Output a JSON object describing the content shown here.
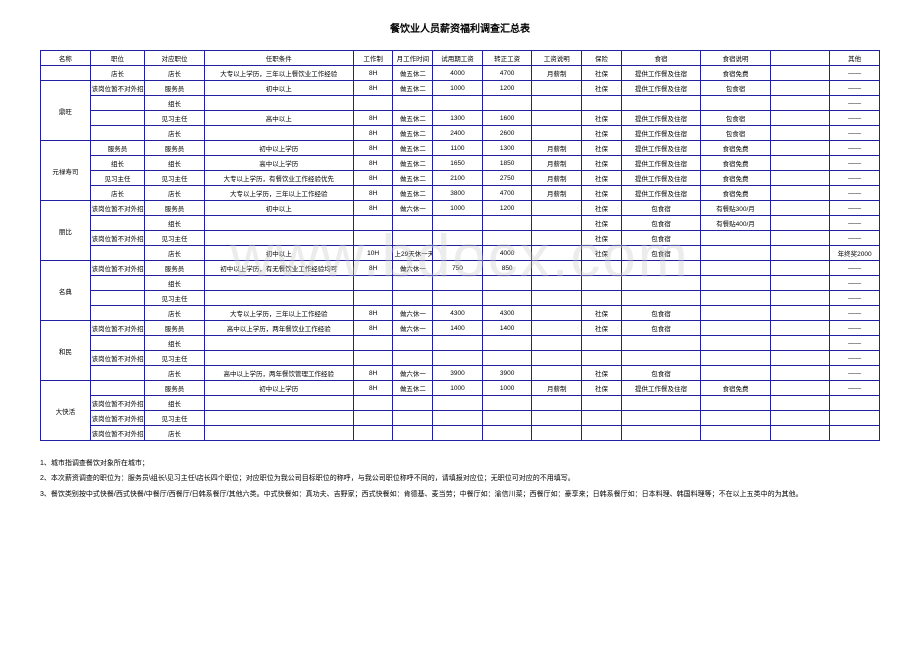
{
  "title": "餐饮业人员薪资福利调查汇总表",
  "watermark": "www.bdocx.com",
  "headers": {
    "name": "名称",
    "position": "职位",
    "corrPos": "对应职位",
    "req": "任职条件",
    "workSys": "工作制",
    "monthTime": "月工作时间",
    "trialWage": "试用期工资",
    "fullWage": "转正工资",
    "wageDesc": "工资说明",
    "insurance": "保险",
    "board": "食宿",
    "boardDesc": "食宿说明",
    "other": "其他"
  },
  "groups": [
    {
      "name": "",
      "rows": [
        {
          "pos": "店长",
          "cpos": "店长",
          "req": "大专以上学历，三年以上餐饮业工作经验",
          "ws": "8H",
          "mt": "做五休二",
          "tw": "4000",
          "fw": "4700",
          "wd": "月薪制",
          "ins": "社保",
          "bd": "提供工作餐及住宿",
          "bdd": "食宿免费",
          "oth": "——"
        }
      ]
    },
    {
      "name": "鼎旺",
      "rows": [
        {
          "pos": "该岗位暂不对外招聘",
          "cpos": "服务员",
          "req": "初中以上",
          "ws": "8H",
          "mt": "做五休二",
          "tw": "1000",
          "fw": "1200",
          "wd": "",
          "ins": "社保",
          "bd": "提供工作餐及住宿",
          "bdd": "包食宿",
          "oth": "——"
        },
        {
          "pos": "",
          "cpos": "组长",
          "req": "",
          "ws": "",
          "mt": "",
          "tw": "",
          "fw": "",
          "wd": "",
          "ins": "",
          "bd": "",
          "bdd": "",
          "oth": "——"
        },
        {
          "pos": "",
          "cpos": "见习主任",
          "req": "高中以上",
          "ws": "8H",
          "mt": "做五休二",
          "tw": "1300",
          "fw": "1600",
          "wd": "",
          "ins": "社保",
          "bd": "提供工作餐及住宿",
          "bdd": "包食宿",
          "oth": "——"
        },
        {
          "pos": "",
          "cpos": "店长",
          "req": "",
          "ws": "8H",
          "mt": "做五休二",
          "tw": "2400",
          "fw": "2600",
          "wd": "",
          "ins": "社保",
          "bd": "提供工作餐及住宿",
          "bdd": "包食宿",
          "oth": "——"
        }
      ],
      "posSpan": 4
    },
    {
      "name": "元禄寿司",
      "rows": [
        {
          "pos": "服务员",
          "cpos": "服务员",
          "req": "初中以上学历",
          "ws": "8H",
          "mt": "做五休二",
          "tw": "1100",
          "fw": "1300",
          "wd": "月薪制",
          "ins": "社保",
          "bd": "提供工作餐及住宿",
          "bdd": "食宿免费",
          "oth": "——"
        },
        {
          "pos": "组长",
          "cpos": "组长",
          "req": "高中以上学历",
          "ws": "8H",
          "mt": "做五休二",
          "tw": "1650",
          "fw": "1850",
          "wd": "月薪制",
          "ins": "社保",
          "bd": "提供工作餐及住宿",
          "bdd": "食宿免费",
          "oth": "——"
        },
        {
          "pos": "见习主任",
          "cpos": "见习主任",
          "req": "大专以上学历，有餐饮业工作经验优先",
          "ws": "8H",
          "mt": "做五休二",
          "tw": "2100",
          "fw": "2750",
          "wd": "月薪制",
          "ins": "社保",
          "bd": "提供工作餐及住宿",
          "bdd": "食宿免费",
          "oth": "——"
        },
        {
          "pos": "店长",
          "cpos": "店长",
          "req": "大专以上学历，三年以上工作经验",
          "ws": "8H",
          "mt": "做五休二",
          "tw": "3800",
          "fw": "4700",
          "wd": "月薪制",
          "ins": "社保",
          "bd": "提供工作餐及住宿",
          "bdd": "食宿免费",
          "oth": "——"
        }
      ]
    },
    {
      "name": "丽比",
      "rows": [
        {
          "pos": "该岗位暂不对外招聘",
          "cpos": "服务员",
          "req": "初中以上",
          "ws": "8H",
          "mt": "做六休一",
          "tw": "1000",
          "fw": "1200",
          "wd": "",
          "ins": "社保",
          "bd": "包食宿",
          "bdd": "有餐贴300/月",
          "oth": "——"
        },
        {
          "pos": "",
          "cpos": "组长",
          "req": "",
          "ws": "",
          "mt": "",
          "tw": "",
          "fw": "",
          "wd": "",
          "ins": "社保",
          "bd": "包食宿",
          "bdd": "有餐贴400/月",
          "oth": "——"
        },
        {
          "pos": "该岗位暂不对外招聘",
          "cpos": "见习主任",
          "req": "",
          "ws": "",
          "mt": "",
          "tw": "",
          "fw": "",
          "wd": "",
          "ins": "社保",
          "bd": "包食宿",
          "bdd": "",
          "oth": "——"
        },
        {
          "pos": "",
          "cpos": "店长",
          "req": "初中以上",
          "ws": "10H",
          "mt": "上29天休一天",
          "tw": "",
          "fw": "4000",
          "wd": "",
          "ins": "社保",
          "bd": "包食宿",
          "bdd": "",
          "oth": "年终奖2000"
        }
      ]
    },
    {
      "name": "名典",
      "rows": [
        {
          "pos": "该岗位暂不对外招聘",
          "cpos": "服务员",
          "req": "初中以上学历，有无餐饮业工作经验均可",
          "ws": "8H",
          "mt": "做六休一",
          "tw": "750",
          "fw": "850",
          "wd": "",
          "ins": "",
          "bd": "",
          "bdd": "",
          "oth": "——"
        },
        {
          "pos": "",
          "cpos": "组长",
          "req": "",
          "ws": "",
          "mt": "",
          "tw": "",
          "fw": "",
          "wd": "",
          "ins": "",
          "bd": "",
          "bdd": "",
          "oth": "——"
        },
        {
          "pos": "",
          "cpos": "见习主任",
          "req": "",
          "ws": "",
          "mt": "",
          "tw": "",
          "fw": "",
          "wd": "",
          "ins": "",
          "bd": "",
          "bdd": "",
          "oth": "——"
        },
        {
          "pos": "",
          "cpos": "店长",
          "req": "大专以上学历，三年以上工作经验",
          "ws": "8H",
          "mt": "做六休一",
          "tw": "4300",
          "fw": "4300",
          "wd": "",
          "ins": "社保",
          "bd": "包食宿",
          "bdd": "",
          "oth": "——"
        }
      ]
    },
    {
      "name": "和民",
      "rows": [
        {
          "pos": "该岗位暂不对外招聘",
          "cpos": "服务员",
          "req": "高中以上学历，两年餐饮业工作经验",
          "ws": "8H",
          "mt": "做六休一",
          "tw": "1400",
          "fw": "1400",
          "wd": "",
          "ins": "社保",
          "bd": "包食宿",
          "bdd": "",
          "oth": "——"
        },
        {
          "pos": "",
          "cpos": "组长",
          "req": "",
          "ws": "",
          "mt": "",
          "tw": "",
          "fw": "",
          "wd": "",
          "ins": "",
          "bd": "",
          "bdd": "",
          "oth": "——"
        },
        {
          "pos": "该岗位暂不对外招聘",
          "cpos": "见习主任",
          "req": "",
          "ws": "",
          "mt": "",
          "tw": "",
          "fw": "",
          "wd": "",
          "ins": "",
          "bd": "",
          "bdd": "",
          "oth": "——"
        },
        {
          "pos": "",
          "cpos": "店长",
          "req": "高中以上学历，两年餐饮管理工作经验",
          "ws": "8H",
          "mt": "做六休一",
          "tw": "3900",
          "fw": "3900",
          "wd": "",
          "ins": "社保",
          "bd": "包食宿",
          "bdd": "",
          "oth": "——"
        }
      ]
    },
    {
      "name": "大快活",
      "rows": [
        {
          "pos": "",
          "cpos": "服务员",
          "req": "初中以上学历",
          "ws": "8H",
          "mt": "做五休二",
          "tw": "1000",
          "fw": "1000",
          "wd": "月薪制",
          "ins": "社保",
          "bd": "提供工作餐及住宿",
          "bdd": "食宿免费",
          "oth": "——"
        },
        {
          "pos": "该岗位暂不对外招聘",
          "cpos": "组长",
          "req": "",
          "ws": "",
          "mt": "",
          "tw": "",
          "fw": "",
          "wd": "",
          "ins": "",
          "bd": "",
          "bdd": "",
          "oth": ""
        },
        {
          "pos": "该岗位暂不对外招聘",
          "cpos": "见习主任",
          "req": "",
          "ws": "",
          "mt": "",
          "tw": "",
          "fw": "",
          "wd": "",
          "ins": "",
          "bd": "",
          "bdd": "",
          "oth": ""
        },
        {
          "pos": "该岗位暂不对外招聘",
          "cpos": "店长",
          "req": "",
          "ws": "",
          "mt": "",
          "tw": "",
          "fw": "",
          "wd": "",
          "ins": "",
          "bd": "",
          "bdd": "",
          "oth": ""
        }
      ]
    }
  ],
  "notes": [
    "1、城市指调查餐饮对象所在城市；",
    "2、本次薪资调查的职位为：服务员\\组长\\见习主任\\店长四个职位；对应职位为我公司目标职位的称呼，与我公司职位称呼不同的，请填报对应位；无职位可对应的不用填写。",
    "3、餐饮类别按中式快餐/西式快餐/中餐厅/西餐厅/日韩系餐厅/其他六类。中式快餐如：真功夫、吉野家；西式快餐如：肯德基、麦当劳；中餐厅如：渝信川菜；西餐厅如：豪享来；日韩系餐厅如：日本料理、韩国料理等；不在以上五类中的为其他。"
  ]
}
